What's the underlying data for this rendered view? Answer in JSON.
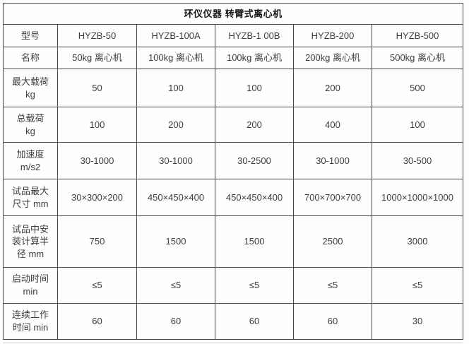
{
  "title": "环仪仪器 转臂式离心机",
  "colors": {
    "border": "#474747",
    "text": "#3d3d3d",
    "title_text": "#141414",
    "background": "#ffffff",
    "faint_bottom_line": "#cccccc"
  },
  "chart_data": {
    "type": "table",
    "title": "环仪仪器 转臂式离心机",
    "row_header_column": [
      "型号",
      "名称",
      "最大载荷 kg",
      "总载荷 kg",
      "加速度 m/s2",
      "试品最大尺寸 mm",
      "试品中安装计算半径 mm",
      "启动时间 min",
      "连续工作时间 min"
    ],
    "columns": [
      "HYZB-50",
      "HYZB-100A",
      "HYZB-1 00B",
      "HYZB-200",
      "HYZB-500"
    ],
    "rows": [
      [
        "50kg 离心机",
        "100kg 离心机",
        "100kg 离心机",
        "200kg 离心机",
        "500kg 离心机"
      ],
      [
        "50",
        "100",
        "100",
        "200",
        "500"
      ],
      [
        "100",
        "200",
        "200",
        "400",
        "100"
      ],
      [
        "30-1000",
        "30-1000",
        "30-2500",
        "30-1000",
        "30-500"
      ],
      [
        "30×300×200",
        "450×450×400",
        "450×450×400",
        "700×700×700",
        "1000×1000×1000"
      ],
      [
        "750",
        "1500",
        "1500",
        "2500",
        "3000"
      ],
      [
        "≤5",
        "≤5",
        "≤5",
        "≤5",
        "≤5"
      ],
      [
        "60",
        "60",
        "60",
        "60",
        "30"
      ]
    ]
  },
  "table": {
    "rows": [
      {
        "label": "型号",
        "values": [
          "HYZB-50",
          "HYZB-100A",
          "HYZB-1 00B",
          "HYZB-200",
          "HYZB-500"
        ]
      },
      {
        "label": "名称",
        "values": [
          "50kg 离心机",
          "100kg 离心机",
          "100kg 离心机",
          "200kg 离心机",
          "500kg 离心机"
        ]
      },
      {
        "label": "最大载荷\nkg",
        "values": [
          "50",
          "100",
          "100",
          "200",
          "500"
        ]
      },
      {
        "label": "总载荷\nkg",
        "values": [
          "100",
          "200",
          "200",
          "400",
          "100"
        ]
      },
      {
        "label": "加速度\nm/s2",
        "values": [
          "30-1000",
          "30-1000",
          "30-2500",
          "30-1000",
          "30-500"
        ]
      },
      {
        "label": "试品最大\n尺寸 mm",
        "values": [
          "30×300×200",
          "450×450×400",
          "450×450×400",
          "700×700×700",
          "1000×1000×1000"
        ]
      },
      {
        "label": "试品中安\n装计算半\n径 mm",
        "values": [
          "750",
          "1500",
          "1500",
          "2500",
          "3000"
        ]
      },
      {
        "label": "启动时间\nmin",
        "values": [
          "≤5",
          "≤5",
          "≤5",
          "≤5",
          "≤5"
        ]
      },
      {
        "label": "连续工作\n时间 min",
        "values": [
          "60",
          "60",
          "60",
          "60",
          "30"
        ]
      }
    ]
  }
}
